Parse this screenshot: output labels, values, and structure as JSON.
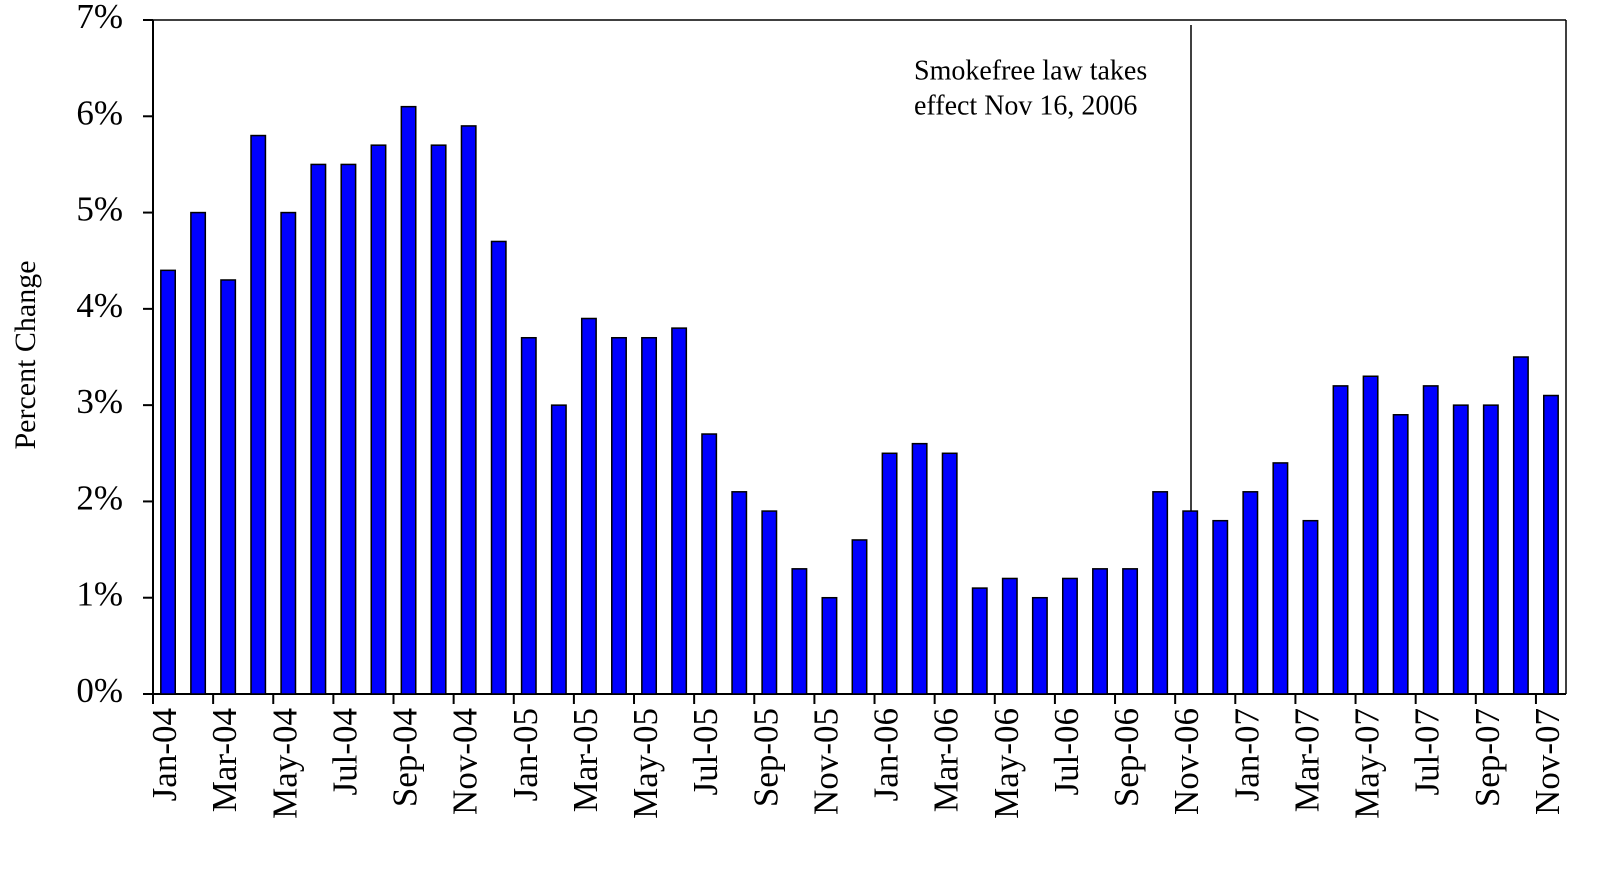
{
  "chart_data": {
    "type": "bar",
    "y_label": "Percent Change",
    "annotation": [
      "Smokefree law takes",
      "effect Nov 16, 2006"
    ],
    "categories": [
      "Jan-04",
      null,
      "Mar-04",
      null,
      "May-04",
      null,
      "Jul-04",
      null,
      "Sep-04",
      null,
      "Nov-04",
      null,
      "Jan-05",
      null,
      "Mar-05",
      null,
      "May-05",
      null,
      "Jul-05",
      null,
      "Sep-05",
      null,
      "Nov-05",
      null,
      "Jan-06",
      null,
      "Mar-06",
      null,
      "May-06",
      null,
      "Jul-06",
      null,
      "Sep-06",
      null,
      "Nov-06",
      null,
      "Jan-07",
      null,
      "Mar-07",
      null,
      "May-07",
      null,
      "Jul-07",
      null,
      "Sep-07",
      null,
      "Nov-07"
    ],
    "values": [
      4.4,
      5.0,
      4.3,
      5.8,
      5.0,
      5.5,
      5.5,
      5.7,
      6.1,
      5.7,
      5.9,
      4.7,
      3.7,
      3.0,
      3.9,
      3.7,
      3.7,
      3.8,
      2.7,
      2.1,
      1.9,
      1.3,
      1.0,
      1.6,
      2.5,
      2.6,
      2.5,
      1.1,
      1.2,
      1.0,
      1.2,
      1.3,
      1.3,
      2.1,
      1.9,
      1.8,
      2.1,
      2.4,
      1.8,
      3.2,
      3.3,
      2.9,
      3.2,
      3.0,
      3.0,
      3.5,
      3.1
    ],
    "color": "#0000ff",
    "ylim": [
      0,
      7
    ],
    "yticks": [
      {
        "value": 0,
        "label": "0%"
      },
      {
        "value": 1,
        "label": "1%"
      },
      {
        "value": 2,
        "label": "2%"
      },
      {
        "value": 3,
        "label": "3%"
      },
      {
        "value": 4,
        "label": "4%"
      },
      {
        "value": 5,
        "label": "5%"
      },
      {
        "value": 6,
        "label": "6%"
      },
      {
        "value": 7,
        "label": "7%"
      }
    ],
    "grid": false
  }
}
